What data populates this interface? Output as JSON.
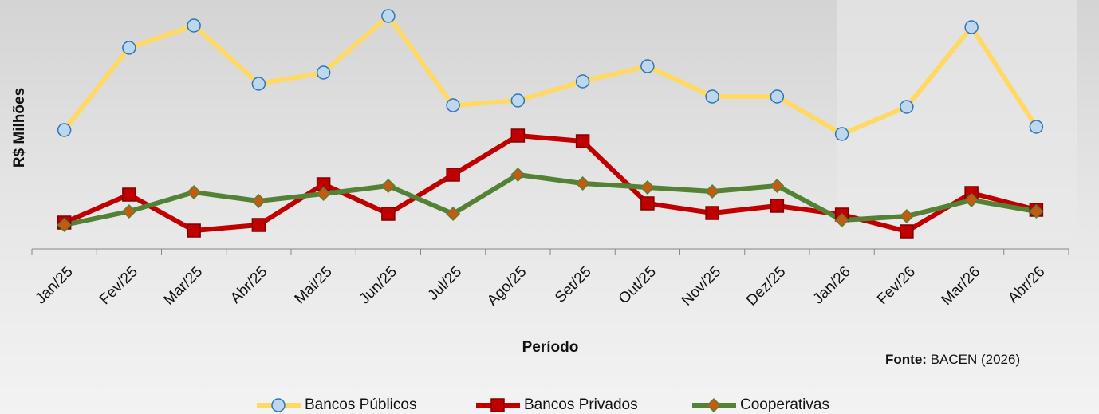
{
  "chart_data": {
    "type": "line",
    "x_label": "Período",
    "y_label": "R$ Milhões",
    "source_label": "Fonte:",
    "source": "BACEN (2026)",
    "categories": [
      "Jan/25",
      "Fev/25",
      "Mar/25",
      "Abr/25",
      "Mai/25",
      "Jun/25",
      "Jul/25",
      "Ago/25",
      "Set/25",
      "Out/25",
      "Nov/25",
      "Dez/25",
      "Jan/26",
      "Fev/26",
      "Mar/26",
      "Abr/26"
    ],
    "ylim": [
      0,
      300
    ],
    "legend": "bottom",
    "series": [
      {
        "name": "Bancos Públicos",
        "color": "#ffd966",
        "marker": "circle",
        "marker_color": "#bdd7ee",
        "marker_edge": "#2e75b6",
        "values": [
          149,
          252,
          280,
          207,
          221,
          292,
          180,
          186,
          210,
          229,
          191,
          191,
          144,
          178,
          278,
          153
        ]
      },
      {
        "name": "Bancos Privados",
        "color": "#c00000",
        "marker": "square",
        "marker_color": "#c00000",
        "marker_edge": "#7f0000",
        "values": [
          33,
          68,
          23,
          30,
          81,
          44,
          93,
          142,
          135,
          57,
          45,
          54,
          43,
          22,
          70,
          49
        ]
      },
      {
        "name": "Cooperativas",
        "color": "#548235",
        "marker": "diamond",
        "marker_color": "#c55a11",
        "marker_edge": "#548235",
        "values": [
          30,
          47,
          71,
          60,
          69,
          79,
          44,
          93,
          82,
          77,
          72,
          79,
          36,
          41,
          61,
          47
        ]
      }
    ]
  }
}
